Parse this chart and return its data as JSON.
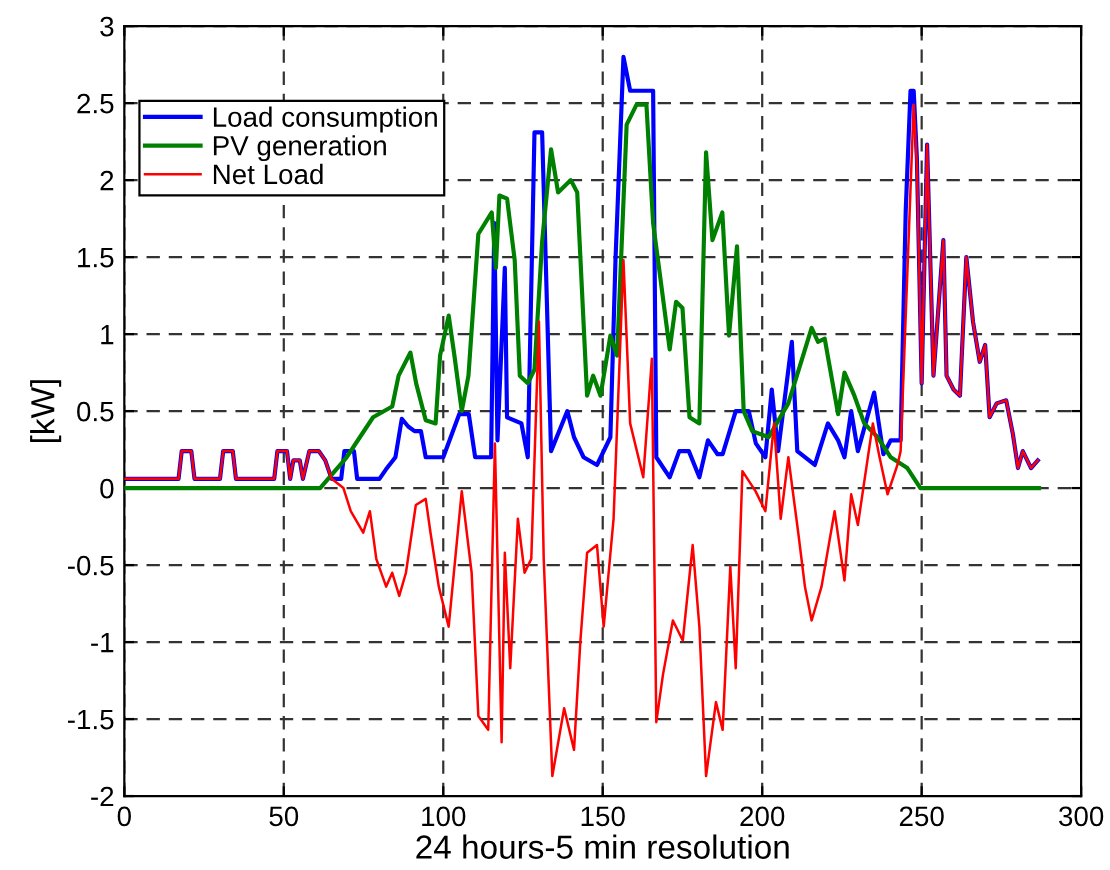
{
  "chart_data": {
    "type": "line",
    "xlabel": "24 hours-5 min resolution",
    "ylabel": "[kW]",
    "xlim": [
      0,
      300
    ],
    "ylim": [
      -2,
      3
    ],
    "xticks": [
      0,
      50,
      100,
      150,
      200,
      250,
      300
    ],
    "yticks": [
      -2,
      -1.5,
      -1,
      -0.5,
      0,
      0.5,
      1,
      1.5,
      2,
      2.5,
      3
    ],
    "grid": true,
    "legend": "top left",
    "line_style": "solid",
    "marker": "none",
    "series": [
      {
        "name": "Load consumption",
        "color": "#0000ff",
        "x": [
          0,
          17,
          18,
          21,
          22,
          30,
          31,
          34,
          35,
          47,
          48,
          51,
          52,
          53,
          55,
          56,
          58,
          61,
          63,
          65,
          68,
          69,
          72,
          73,
          80,
          82,
          85,
          87,
          89,
          91,
          93,
          94.5,
          100,
          105,
          108,
          110,
          115,
          116,
          117,
          119.3,
          120,
          124.5,
          126.5,
          128.6,
          131,
          133.8,
          138.9,
          141,
          144,
          148.2,
          152.4,
          154,
          156.5,
          158.6,
          165.8,
          166.8,
          171,
          174,
          177,
          180.3,
          183,
          186,
          187.6,
          191.7,
          195.8,
          198,
          201,
          203,
          205,
          209.3,
          211,
          216.5,
          220.6,
          223.8,
          225.8,
          227.9,
          230,
          235.1,
          238,
          240.3,
          243.4,
          245,
          246.5,
          247.5,
          248.5,
          250,
          251.7,
          253.7,
          256.8,
          257.8,
          260,
          262,
          264,
          266.1,
          268.2,
          269.9,
          271.3,
          273.5,
          276.5,
          278.6,
          280.2,
          281.7,
          284.3,
          286.4
        ],
        "values": [
          0.06,
          0.06,
          0.24,
          0.24,
          0.06,
          0.06,
          0.24,
          0.24,
          0.06,
          0.06,
          0.24,
          0.24,
          0.06,
          0.18,
          0.18,
          0.06,
          0.24,
          0.24,
          0.18,
          0.06,
          0.06,
          0.24,
          0.24,
          0.06,
          0.06,
          0.12,
          0.2,
          0.45,
          0.4,
          0.37,
          0.37,
          0.2,
          0.2,
          0.48,
          0.48,
          0.2,
          0.2,
          1.72,
          0.31,
          1.43,
          0.46,
          0.42,
          0.2,
          2.31,
          2.31,
          0.24,
          0.5,
          0.33,
          0.2,
          0.15,
          0.33,
          1.48,
          2.8,
          2.58,
          2.58,
          0.2,
          0.07,
          0.24,
          0.24,
          0.07,
          0.31,
          0.22,
          0.22,
          0.5,
          0.5,
          0.29,
          0.2,
          0.64,
          0.24,
          0.95,
          0.24,
          0.15,
          0.42,
          0.31,
          0.2,
          0.5,
          0.24,
          0.62,
          0.22,
          0.31,
          0.31,
          1.8,
          2.58,
          2.58,
          2.14,
          0.68,
          2.23,
          0.73,
          1.61,
          0.73,
          0.64,
          0.6,
          1.5,
          1.08,
          0.82,
          0.93,
          0.46,
          0.55,
          0.57,
          0.35,
          0.13,
          0.24,
          0.13,
          0.18
        ]
      },
      {
        "name": "PV generation",
        "color": "#008000",
        "x": [
          0,
          61.4,
          69.7,
          78,
          84,
          86,
          89.7,
          91.5,
          94.5,
          97.6,
          99,
          101.7,
          103.5,
          105.8,
          107.9,
          111,
          115.2,
          116.5,
          117.6,
          120,
          122.4,
          124,
          126.5,
          128.6,
          131,
          133.8,
          136,
          140,
          142,
          145.1,
          147,
          149.3,
          152.4,
          154.5,
          157.5,
          160.6,
          163.7,
          165.8,
          167.9,
          171,
          173,
          175,
          177.2,
          180.3,
          182.4,
          184.4,
          187.5,
          189.6,
          192.1,
          194.2,
          196.9,
          202,
          208.2,
          215.5,
          217.5,
          219.6,
          223.8,
          225.8,
          228.9,
          232,
          236.2,
          240.3,
          245.5,
          249.6,
          286.8
        ],
        "values": [
          0,
          0,
          0.2,
          0.46,
          0.53,
          0.73,
          0.88,
          0.68,
          0.44,
          0.42,
          0.86,
          1.12,
          0.86,
          0.5,
          0.73,
          1.65,
          1.79,
          1.43,
          1.9,
          1.88,
          1.48,
          0.73,
          0.68,
          0.77,
          1.6,
          2.2,
          1.92,
          2.0,
          1.92,
          0.6,
          0.73,
          0.6,
          0.99,
          0.86,
          2.36,
          2.49,
          2.49,
          1.72,
          1.39,
          0.9,
          1.21,
          1.17,
          0.46,
          0.42,
          2.18,
          1.61,
          1.79,
          0.99,
          1.57,
          0.5,
          0.37,
          0.33,
          0.55,
          1.04,
          0.95,
          0.97,
          0.48,
          0.75,
          0.6,
          0.42,
          0.33,
          0.2,
          0.13,
          0,
          0
        ]
      },
      {
        "name": "Net Load",
        "color": "#ff0000",
        "x": [
          0,
          17,
          18,
          21,
          22,
          30,
          31,
          34,
          35,
          47,
          48,
          51,
          52,
          53,
          55,
          56,
          58,
          61,
          63,
          65,
          68.7,
          71,
          74.9,
          77,
          79,
          82.1,
          84,
          86.2,
          88.3,
          91.4,
          94.5,
          96,
          98.6,
          101.7,
          105.8,
          108.9,
          111,
          114.1,
          116.2,
          118.3,
          119.3,
          121,
          123.4,
          125.5,
          127.6,
          130,
          131.5,
          134.2,
          137.9,
          141,
          143,
          145.1,
          148.2,
          150.3,
          153.4,
          156.5,
          158.6,
          162.7,
          165.4,
          166.8,
          168.9,
          172,
          175.1,
          178.2,
          180.3,
          182.4,
          185.5,
          187.6,
          190,
          191.7,
          193.8,
          197.9,
          201,
          203.7,
          205.8,
          208.2,
          211.3,
          213.4,
          215.5,
          218.6,
          222.7,
          225.8,
          227.9,
          230,
          234.7,
          236.8,
          239.3,
          242.4,
          243.4,
          247.5,
          248.5,
          250,
          251.7,
          253.7,
          256.8,
          257.8,
          260,
          262,
          264,
          266.1,
          268.2,
          269.9,
          271.3,
          273.5,
          276.5,
          278.6,
          280.2,
          281.7,
          284.3,
          286.4
        ],
        "values": [
          0.06,
          0.06,
          0.24,
          0.24,
          0.06,
          0.06,
          0.24,
          0.24,
          0.06,
          0.06,
          0.24,
          0.24,
          0.06,
          0.18,
          0.18,
          0.06,
          0.24,
          0.24,
          0.18,
          0.06,
          0,
          -0.15,
          -0.29,
          -0.15,
          -0.46,
          -0.64,
          -0.55,
          -0.7,
          -0.55,
          -0.11,
          -0.07,
          -0.29,
          -0.64,
          -0.9,
          -0.02,
          -0.55,
          -1.48,
          -1.57,
          0.29,
          -1.65,
          -0.42,
          -1.17,
          -0.2,
          -0.55,
          -0.46,
          1.08,
          -0.46,
          -1.87,
          -1.43,
          -1.7,
          -0.99,
          -0.42,
          -0.37,
          -0.9,
          -0.2,
          1.48,
          0.42,
          0.07,
          0.84,
          -1.52,
          -1.21,
          -0.86,
          -0.99,
          -0.37,
          -0.9,
          -1.87,
          -1.39,
          -1.57,
          -0.51,
          -1.17,
          0.11,
          -0.02,
          -0.15,
          0.42,
          -0.2,
          0.2,
          -0.29,
          -0.64,
          -0.86,
          -0.64,
          -0.15,
          -0.6,
          -0.04,
          -0.24,
          0.42,
          0.2,
          -0.04,
          0.15,
          0.24,
          2.49,
          2.1,
          0.68,
          2.23,
          0.73,
          1.61,
          0.73,
          0.64,
          0.6,
          1.5,
          1.08,
          0.82,
          0.93,
          0.46,
          0.55,
          0.57,
          0.35,
          0.13,
          0.24,
          0.13,
          0.18
        ]
      }
    ]
  }
}
